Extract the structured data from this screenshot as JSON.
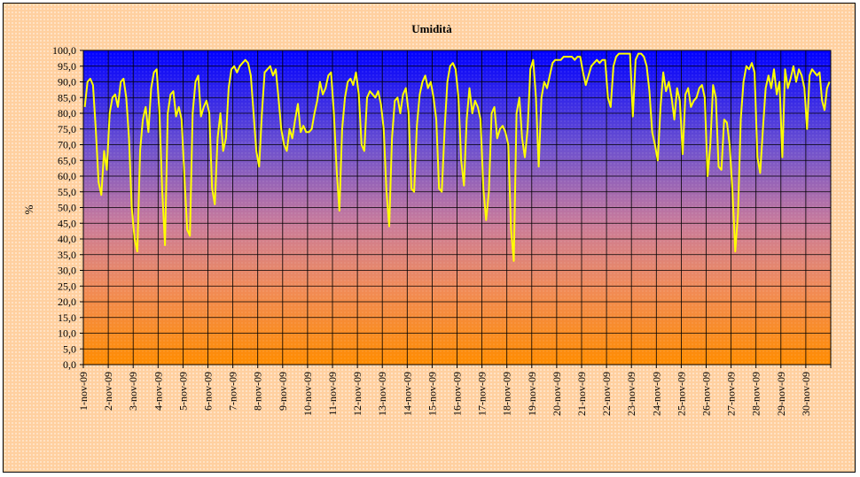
{
  "chart_data": {
    "type": "line",
    "title": "Umidità",
    "ylabel": "%",
    "xlabel": "",
    "ylim": [
      0,
      100
    ],
    "ytick_step": 5,
    "grid": true,
    "legend": "none",
    "line_color": "#ffff00",
    "background_gradient": [
      "#0000ff",
      "#ff8c00"
    ],
    "categories": [
      "1-nov-09",
      "2-nov-09",
      "3-nov-09",
      "4-nov-09",
      "5-nov-09",
      "6-nov-09",
      "7-nov-09",
      "8-nov-09",
      "9-nov-09",
      "10-nov-09",
      "11-nov-09",
      "12-nov-09",
      "13-nov-09",
      "14-nov-09",
      "15-nov-09",
      "16-nov-09",
      "17-nov-09",
      "18-nov-09",
      "19-nov-09",
      "20-nov-09",
      "21-nov-09",
      "22-nov-09",
      "23-nov-09",
      "24-nov-09",
      "25-nov-09",
      "26-nov-09",
      "27-nov-09",
      "28-nov-09",
      "29-nov-09",
      "30-nov-09"
    ],
    "ytick_labels": [
      "0,0",
      "5,0",
      "10,0",
      "15,0",
      "20,0",
      "25,0",
      "30,0",
      "35,0",
      "40,0",
      "45,0",
      "50,0",
      "55,0",
      "60,0",
      "65,0",
      "70,0",
      "75,0",
      "80,0",
      "85,0",
      "90,0",
      "95,0",
      "100,0"
    ],
    "series": [
      {
        "values_by_day": [
          [
            82,
            90,
            91,
            89,
            75,
            58,
            54,
            68,
            62
          ],
          [
            80,
            85,
            86,
            82,
            90,
            91,
            85,
            72,
            50
          ],
          [
            40,
            36,
            68,
            78,
            82,
            74,
            88,
            93,
            94
          ],
          [
            80,
            55,
            38,
            80,
            86,
            87,
            79,
            82,
            78
          ],
          [
            60,
            43,
            41,
            80,
            90,
            92,
            79,
            82,
            84
          ],
          [
            80,
            56,
            51,
            72,
            80,
            68,
            72,
            88,
            94
          ],
          [
            95,
            93,
            95,
            96,
            97,
            96,
            92,
            80,
            68
          ],
          [
            63,
            80,
            93,
            94,
            95,
            92,
            94,
            85,
            75
          ],
          [
            70,
            68,
            75,
            72,
            78,
            83,
            74,
            76,
            74
          ],
          [
            74,
            75,
            80,
            84,
            90,
            86,
            88,
            92,
            93
          ],
          [
            80,
            62,
            49,
            75,
            85,
            90,
            91,
            89,
            93
          ],
          [
            86,
            70,
            68,
            85,
            87,
            86,
            85,
            87,
            83
          ],
          [
            75,
            55,
            44,
            72,
            84,
            85,
            80,
            86,
            88
          ],
          [
            80,
            56,
            55,
            76,
            86,
            90,
            92,
            88,
            90
          ],
          [
            85,
            78,
            56,
            55,
            75,
            90,
            95,
            96,
            94
          ],
          [
            85,
            65,
            57,
            78,
            88,
            80,
            84,
            82,
            78
          ],
          [
            56,
            46,
            55,
            80,
            82,
            72,
            75,
            76,
            74
          ],
          [
            70,
            43,
            33,
            80,
            85,
            72,
            66,
            75,
            94
          ],
          [
            97,
            85,
            63,
            85,
            90,
            88,
            92,
            96,
            97
          ],
          [
            97,
            97,
            98,
            98,
            98,
            98,
            97,
            98,
            98
          ],
          [
            93,
            89,
            92,
            95,
            96,
            97,
            96,
            97,
            97
          ],
          [
            85,
            82,
            95,
            98,
            99,
            99,
            99,
            99,
            99
          ],
          [
            79,
            97,
            99,
            99,
            98,
            95,
            87,
            74,
            70
          ],
          [
            65,
            82,
            93,
            87,
            90,
            85,
            78,
            88,
            84
          ],
          [
            67,
            86,
            88,
            82,
            84,
            85,
            88,
            89,
            85
          ],
          [
            60,
            70,
            89,
            85,
            63,
            62,
            78,
            77,
            70
          ],
          [
            55,
            36,
            48,
            78,
            90,
            95,
            94,
            96,
            93
          ],
          [
            66,
            61,
            75,
            88,
            92,
            88,
            94,
            86,
            90
          ],
          [
            66,
            94,
            88,
            91,
            95,
            90,
            94,
            92,
            88
          ],
          [
            75,
            92,
            94,
            93,
            92,
            93,
            84,
            81,
            88,
            90
          ]
        ]
      }
    ]
  }
}
